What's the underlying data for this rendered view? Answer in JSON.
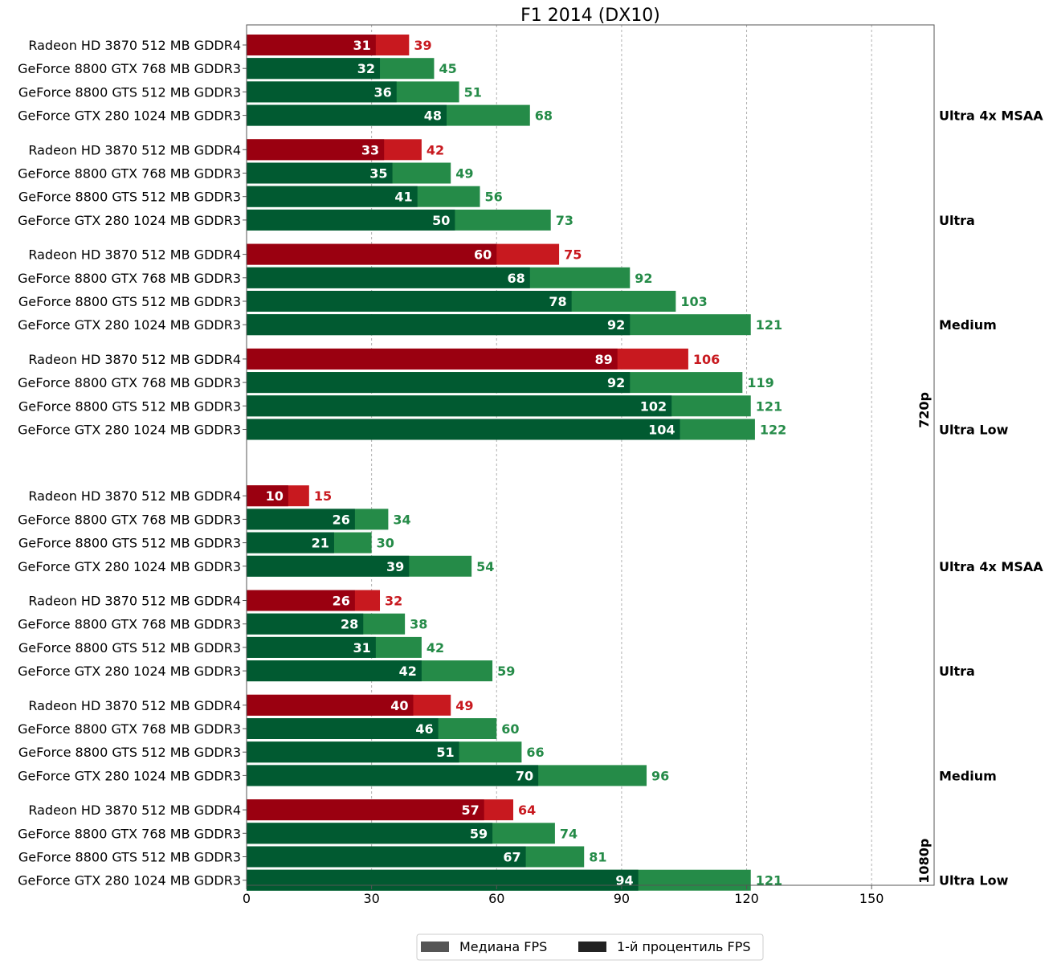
{
  "chart_data": {
    "type": "bar",
    "orientation": "horizontal",
    "title": "F1 2014 (DX10)",
    "xlabel": "",
    "ylabel": "",
    "xlim": [
      0,
      165
    ],
    "xticks": [
      0,
      30,
      60,
      90,
      120,
      150
    ],
    "grid": "x-dashed",
    "legend": {
      "placement": "bottom-center",
      "entries": [
        {
          "label": "Медиана FPS",
          "color": "#555555"
        },
        {
          "label": "1-й процентиль FPS",
          "color": "#222222"
        }
      ]
    },
    "colors": {
      "amd_median": "#c8191f",
      "amd_p1": "#9a0010",
      "nvidia_median": "#258b48",
      "nvidia_p1": "#015a31",
      "amd_label": "#c8191f",
      "nvidia_label": "#258b48"
    },
    "groups": [
      {
        "resolution": "720p",
        "preset": "Ultra 4x MSAA",
        "rows": [
          {
            "gpu": "Radeon HD 3870 512 MB GDDR4",
            "vendor": "amd",
            "p1": 31,
            "median": 39
          },
          {
            "gpu": "GeForce 8800 GTX 768 MB GDDR3",
            "vendor": "nvidia",
            "p1": 32,
            "median": 45
          },
          {
            "gpu": "GeForce 8800 GTS 512 MB GDDR3",
            "vendor": "nvidia",
            "p1": 36,
            "median": 51
          },
          {
            "gpu": "GeForce GTX 280 1024 MB GDDR3",
            "vendor": "nvidia",
            "p1": 48,
            "median": 68
          }
        ]
      },
      {
        "resolution": "720p",
        "preset": "Ultra",
        "rows": [
          {
            "gpu": "Radeon HD 3870 512 MB GDDR4",
            "vendor": "amd",
            "p1": 33,
            "median": 42
          },
          {
            "gpu": "GeForce 8800 GTX 768 MB GDDR3",
            "vendor": "nvidia",
            "p1": 35,
            "median": 49
          },
          {
            "gpu": "GeForce 8800 GTS 512 MB GDDR3",
            "vendor": "nvidia",
            "p1": 41,
            "median": 56
          },
          {
            "gpu": "GeForce GTX 280 1024 MB GDDR3",
            "vendor": "nvidia",
            "p1": 50,
            "median": 73
          }
        ]
      },
      {
        "resolution": "720p",
        "preset": "Medium",
        "rows": [
          {
            "gpu": "Radeon HD 3870 512 MB GDDR4",
            "vendor": "amd",
            "p1": 60,
            "median": 75
          },
          {
            "gpu": "GeForce 8800 GTX 768 MB GDDR3",
            "vendor": "nvidia",
            "p1": 68,
            "median": 92
          },
          {
            "gpu": "GeForce 8800 GTS 512 MB GDDR3",
            "vendor": "nvidia",
            "p1": 78,
            "median": 103
          },
          {
            "gpu": "GeForce GTX 280 1024 MB GDDR3",
            "vendor": "nvidia",
            "p1": 92,
            "median": 121
          }
        ]
      },
      {
        "resolution": "720p",
        "preset": "Ultra Low",
        "rows": [
          {
            "gpu": "Radeon HD 3870 512 MB GDDR4",
            "vendor": "amd",
            "p1": 89,
            "median": 106
          },
          {
            "gpu": "GeForce 8800 GTX 768 MB GDDR3",
            "vendor": "nvidia",
            "p1": 92,
            "median": 119
          },
          {
            "gpu": "GeForce 8800 GTS 512 MB GDDR3",
            "vendor": "nvidia",
            "p1": 102,
            "median": 121
          },
          {
            "gpu": "GeForce GTX 280 1024 MB GDDR3",
            "vendor": "nvidia",
            "p1": 104,
            "median": 122
          }
        ]
      },
      {
        "resolution": "1080p",
        "preset": "Ultra 4x MSAA",
        "rows": [
          {
            "gpu": "Radeon HD 3870 512 MB GDDR4",
            "vendor": "amd",
            "p1": 10,
            "median": 15
          },
          {
            "gpu": "GeForce 8800 GTX 768 MB GDDR3",
            "vendor": "nvidia",
            "p1": 26,
            "median": 34
          },
          {
            "gpu": "GeForce 8800 GTS 512 MB GDDR3",
            "vendor": "nvidia",
            "p1": 21,
            "median": 30
          },
          {
            "gpu": "GeForce GTX 280 1024 MB GDDR3",
            "vendor": "nvidia",
            "p1": 39,
            "median": 54
          }
        ]
      },
      {
        "resolution": "1080p",
        "preset": "Ultra",
        "rows": [
          {
            "gpu": "Radeon HD 3870 512 MB GDDR4",
            "vendor": "amd",
            "p1": 26,
            "median": 32
          },
          {
            "gpu": "GeForce 8800 GTX 768 MB GDDR3",
            "vendor": "nvidia",
            "p1": 28,
            "median": 38
          },
          {
            "gpu": "GeForce 8800 GTS 512 MB GDDR3",
            "vendor": "nvidia",
            "p1": 31,
            "median": 42
          },
          {
            "gpu": "GeForce GTX 280 1024 MB GDDR3",
            "vendor": "nvidia",
            "p1": 42,
            "median": 59
          }
        ]
      },
      {
        "resolution": "1080p",
        "preset": "Medium",
        "rows": [
          {
            "gpu": "Radeon HD 3870 512 MB GDDR4",
            "vendor": "amd",
            "p1": 40,
            "median": 49
          },
          {
            "gpu": "GeForce 8800 GTX 768 MB GDDR3",
            "vendor": "nvidia",
            "p1": 46,
            "median": 60
          },
          {
            "gpu": "GeForce 8800 GTS 512 MB GDDR3",
            "vendor": "nvidia",
            "p1": 51,
            "median": 66
          },
          {
            "gpu": "GeForce GTX 280 1024 MB GDDR3",
            "vendor": "nvidia",
            "p1": 70,
            "median": 96
          }
        ]
      },
      {
        "resolution": "1080p",
        "preset": "Ultra Low",
        "rows": [
          {
            "gpu": "Radeon HD 3870 512 MB GDDR4",
            "vendor": "amd",
            "p1": 57,
            "median": 64
          },
          {
            "gpu": "GeForce 8800 GTX 768 MB GDDR3",
            "vendor": "nvidia",
            "p1": 59,
            "median": 74
          },
          {
            "gpu": "GeForce 8800 GTS 512 MB GDDR3",
            "vendor": "nvidia",
            "p1": 67,
            "median": 81
          },
          {
            "gpu": "GeForce GTX 280 1024 MB GDDR3",
            "vendor": "nvidia",
            "p1": 94,
            "median": 121
          }
        ]
      }
    ],
    "resolution_labels": [
      "720p",
      "1080p"
    ]
  }
}
